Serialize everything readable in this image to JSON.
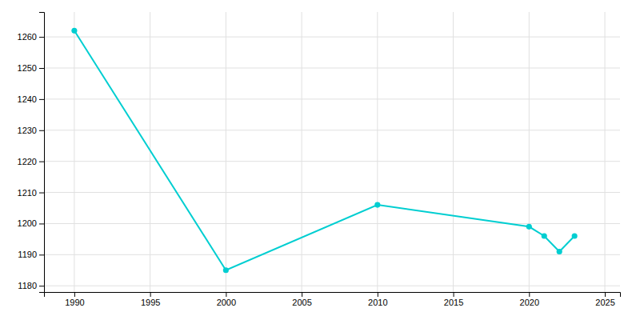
{
  "chart_data": {
    "type": "line",
    "x": [
      1990,
      2000,
      2010,
      2020,
      2021,
      2022,
      2023
    ],
    "values": [
      1262,
      1185,
      1206,
      1199,
      1196,
      1191,
      1196
    ],
    "color": "#00CED1",
    "marker": "circle",
    "xlim": [
      1988,
      2026
    ],
    "ylim": [
      1178,
      1268
    ],
    "xticks": [
      1990,
      1995,
      2000,
      2005,
      2010,
      2015,
      2020,
      2025
    ],
    "yticks": [
      1180,
      1190,
      1200,
      1210,
      1220,
      1230,
      1240,
      1250,
      1260
    ],
    "grid": true
  }
}
